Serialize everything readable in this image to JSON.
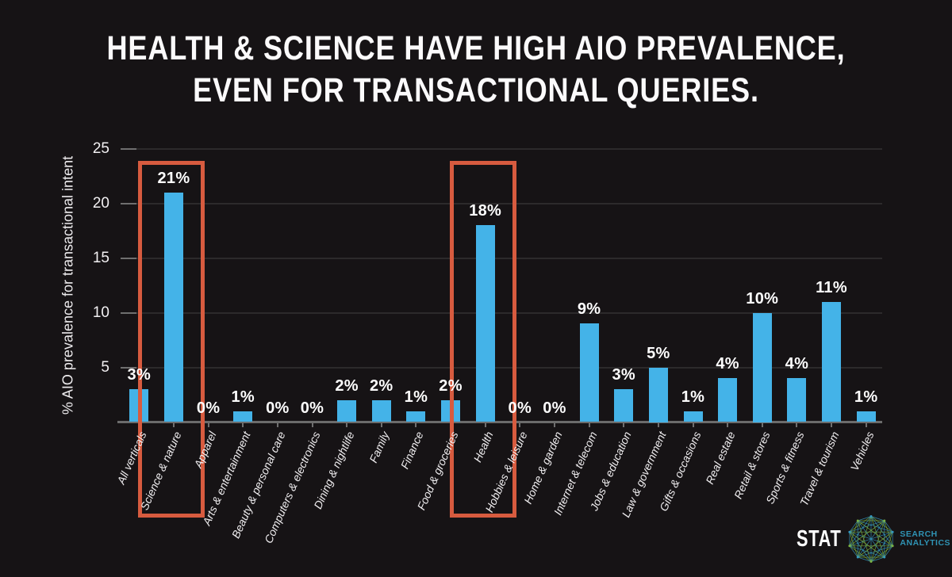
{
  "header": {
    "title_line1": "HEALTH & SCIENCE HAVE HIGH AIO PREVALENCE,",
    "title_line2": "EVEN FOR TRANSACTIONAL QUERIES."
  },
  "chart_data": {
    "type": "bar",
    "title": "HEALTH & SCIENCE HAVE HIGH AIO PREVALENCE, EVEN FOR TRANSACTIONAL QUERIES.",
    "xlabel": "",
    "ylabel": "% AIO prevalence for transactional intent",
    "ylim": [
      0,
      25
    ],
    "yticks": [
      5,
      10,
      15,
      20,
      25
    ],
    "grid": true,
    "legend": false,
    "categories": [
      "All verticals",
      "Science & nature",
      "Apparel",
      "Arts & entertainment",
      "Beauty & personal care",
      "Computers & electronics",
      "Dining & nightlife",
      "Family",
      "Finance",
      "Food & groceries",
      "Health",
      "Hobbies & leisure",
      "Home & garden",
      "Internet & telecom",
      "Jobs & education",
      "Law & government",
      "Gifts & occasions",
      "Real estate",
      "Retail & stores",
      "Sports & fitness",
      "Travel & tourism",
      "Vehicles"
    ],
    "values": [
      3,
      21,
      0,
      1,
      0,
      0,
      2,
      2,
      1,
      2,
      18,
      0,
      0,
      9,
      3,
      5,
      1,
      4,
      10,
      4,
      11,
      1
    ],
    "labels": [
      "3%",
      "21%",
      "0%",
      "1%",
      "0%",
      "0%",
      "2%",
      "2%",
      "1%",
      "2%",
      "18%",
      "0%",
      "0%",
      "9%",
      "3%",
      "5%",
      "1%",
      "4%",
      "10%",
      "4%",
      "11%",
      "1%"
    ],
    "highlighted_categories": [
      "Science & nature",
      "Health"
    ]
  },
  "logo": {
    "name": "STAT",
    "sub_line1": "SEARCH",
    "sub_line2": "ANALYTICS"
  },
  "colors": {
    "background": "#161315",
    "bar": "#44b3e8",
    "highlight_box": "#d75b3f",
    "gridline": "#2c2a2b",
    "tick": "#6f6f6f",
    "axis": "#6b6b6b",
    "text": "#f5f3f4",
    "logo_text_blue": "#2f93b4",
    "logo_icon_green": "#7cb342",
    "logo_icon_blue": "#3498c0"
  }
}
